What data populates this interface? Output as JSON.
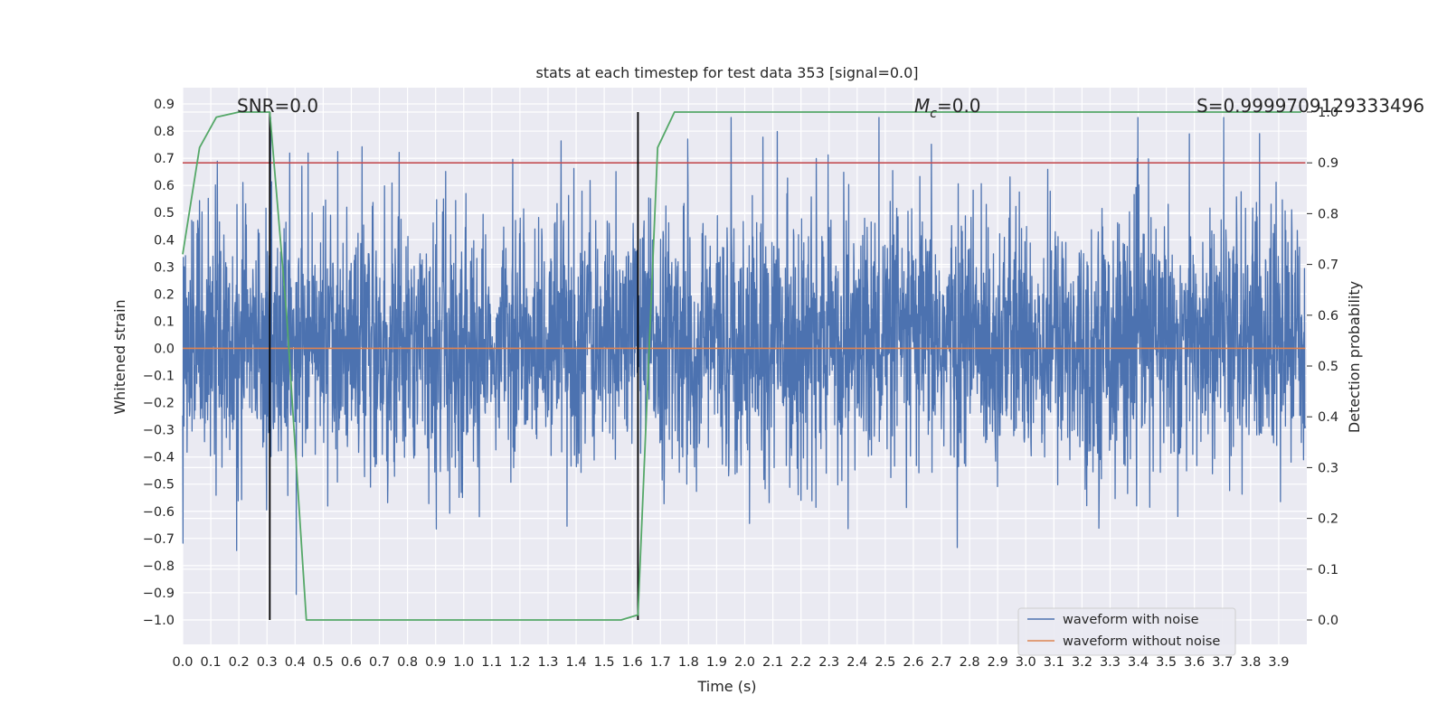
{
  "chart_data": {
    "type": "line",
    "title": "stats at each timestep for test data 353 [signal=0.0]",
    "xlabel": "Time (s)",
    "ylabel": "Whitened strain",
    "y2label": "Detection probability",
    "xlim": [
      0.0,
      4.0
    ],
    "ylim": [
      -1.09,
      0.96
    ],
    "y2lim": [
      -0.048,
      1.048
    ],
    "x_ticks": [
      "0.0",
      "0.1",
      "0.2",
      "0.3",
      "0.4",
      "0.5",
      "0.6",
      "0.7",
      "0.8",
      "0.9",
      "1.0",
      "1.1",
      "1.2",
      "1.3",
      "1.4",
      "1.5",
      "1.6",
      "1.7",
      "1.8",
      "1.9",
      "2.0",
      "2.1",
      "2.2",
      "2.3",
      "2.4",
      "2.5",
      "2.6",
      "2.7",
      "2.8",
      "2.9",
      "3.0",
      "3.1",
      "3.2",
      "3.3",
      "3.4",
      "3.5",
      "3.6",
      "3.7",
      "3.8",
      "3.9"
    ],
    "y_ticks": [
      "0.9",
      "0.8",
      "0.7",
      "0.6",
      "0.5",
      "0.4",
      "0.3",
      "0.2",
      "0.1",
      "0.0",
      "−0.1",
      "−0.2",
      "−0.3",
      "−0.4",
      "−0.5",
      "−0.6",
      "−0.7",
      "−0.8",
      "−0.9",
      "−1.0"
    ],
    "y2_ticks": [
      "1.0",
      "0.9",
      "0.8",
      "0.7",
      "0.6",
      "0.5",
      "0.4",
      "0.3",
      "0.2",
      "0.1",
      "0.0"
    ],
    "annotations": {
      "snr": "SNR=0.0",
      "mc_symbol": "M",
      "mc_sub": "c",
      "mc_value": "=0.0",
      "s": "S=0.9999709129333496"
    },
    "threshold_probability": 0.9,
    "vertical_markers_x": [
      0.31,
      1.62
    ],
    "series": [
      {
        "name": "waveform with noise",
        "color": "#4c72b0",
        "description_values": "dense noise, amplitude roughly within [-1.0, 0.85]"
      },
      {
        "name": "waveform without noise",
        "color": "#dd8452",
        "values_constant": 0.0
      },
      {
        "color": "#55a868",
        "axis": "secondary",
        "x": [
          0.0,
          0.06,
          0.12,
          0.2,
          0.25,
          0.31,
          0.37,
          0.44,
          0.5,
          1.2,
          1.56,
          1.62,
          1.69,
          1.75,
          2.5,
          3.98
        ],
        "values": [
          0.72,
          0.93,
          0.99,
          1.0,
          1.0,
          1.0,
          0.6,
          0.0,
          0.0,
          0.0,
          0.0,
          0.01,
          0.93,
          1.0,
          1.0,
          1.0
        ]
      }
    ],
    "legend": {
      "position": "lower-right",
      "entries": [
        "waveform with noise",
        "waveform without noise"
      ]
    },
    "colors": {
      "background": "#eaeaf2",
      "grid": "#ffffff",
      "threshold": "#c44e52",
      "markers": "#000000"
    }
  }
}
